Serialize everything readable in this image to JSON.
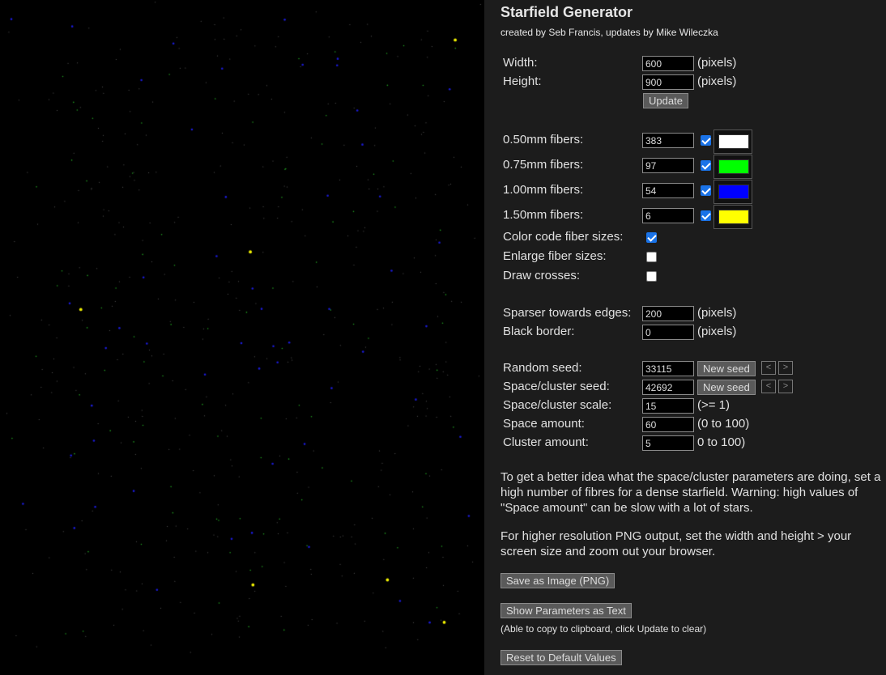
{
  "app": {
    "title": "Starfield Generator",
    "credits": "created by Seb Francis, updates by Mike Wileczka"
  },
  "dimensions": {
    "width_label": "Width:",
    "width_value": "600",
    "width_unit": "(pixels)",
    "height_label": "Height:",
    "height_value": "900",
    "height_unit": "(pixels)",
    "update_label": "Update"
  },
  "fibers": [
    {
      "label": "0.50mm fibers:",
      "count": "383",
      "enabled": true,
      "color": "#ffffff"
    },
    {
      "label": "0.75mm fibers:",
      "count": "97",
      "enabled": true,
      "color": "#00ff00"
    },
    {
      "label": "1.00mm fibers:",
      "count": "54",
      "enabled": true,
      "color": "#0000ff"
    },
    {
      "label": "1.50mm fibers:",
      "count": "6",
      "enabled": true,
      "color": "#ffff00"
    }
  ],
  "options": [
    {
      "label": "Color code fiber sizes:",
      "checked": true
    },
    {
      "label": "Enlarge fiber sizes:",
      "checked": false
    },
    {
      "label": "Draw crosses:",
      "checked": false
    }
  ],
  "edges": {
    "sparser_label": "Sparser towards edges:",
    "sparser_value": "200",
    "sparser_unit": "(pixels)",
    "border_label": "Black border:",
    "border_value": "0",
    "border_unit": "(pixels)"
  },
  "seeds": {
    "random_label": "Random seed:",
    "random_value": "33115",
    "cluster_label": "Space/cluster seed:",
    "cluster_value": "42692",
    "new_seed_label": "New seed",
    "prev_glyph": "<",
    "next_glyph": ">",
    "scale_label": "Space/cluster scale:",
    "scale_value": "15",
    "scale_hint": "(>= 1)",
    "space_label": "Space amount:",
    "space_value": "60",
    "space_hint": "(0 to 100)",
    "cluster_amount_label": "Cluster amount:",
    "cluster_amount_value": "5",
    "cluster_amount_hint": "0 to 100)"
  },
  "help": {
    "para1": "To get a better idea what the space/cluster parameters are doing, set a high number of fibres for a dense starfield. Warning: high values of \"Space amount\" can be slow with a lot of stars.",
    "para2": "For higher resolution PNG output, set the width and height > your screen size and zoom out your browser."
  },
  "actions": {
    "save_png_label": "Save as Image (PNG)",
    "show_params_label": "Show Parameters as Text",
    "clipboard_note": "(Able to copy to clipboard, click Update to clear)",
    "reset_label": "Reset to Default Values"
  }
}
